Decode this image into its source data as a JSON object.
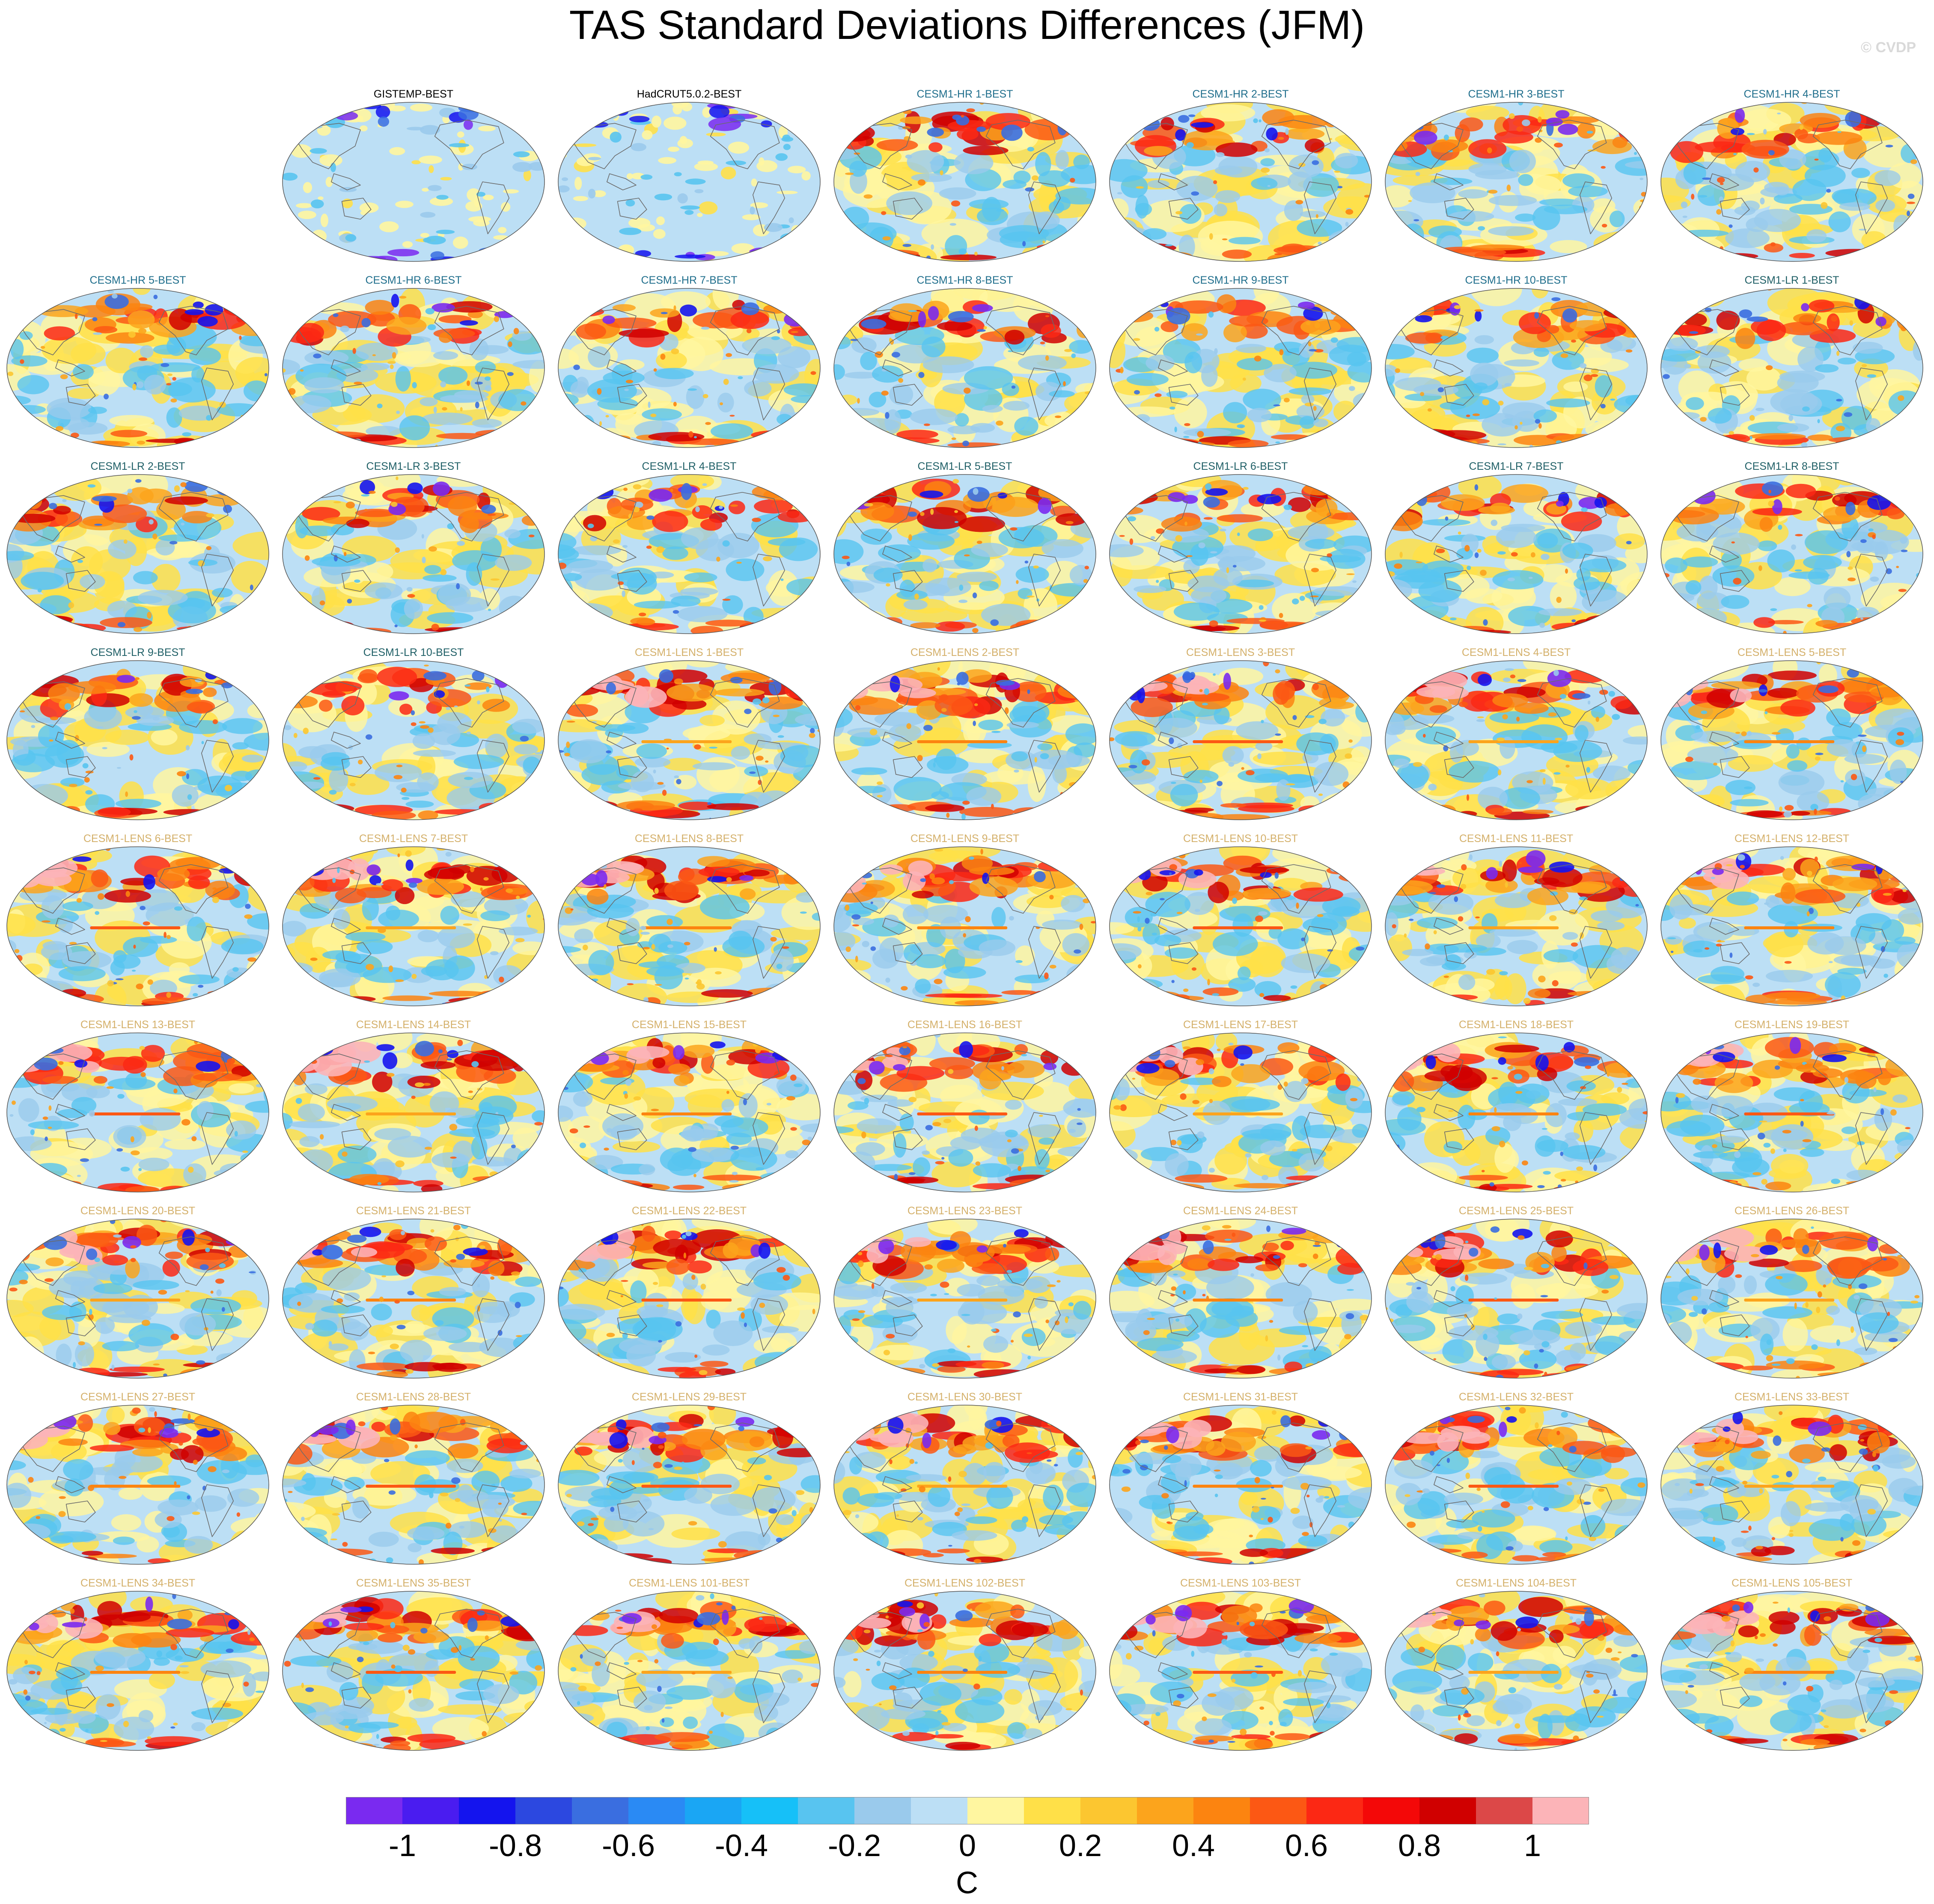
{
  "title": "TAS Standard Deviations Differences (JFM)",
  "credit": "© CVDP",
  "title_colors": {
    "obs": "#000000",
    "hr": "#1f6e8c",
    "lr": "#1f5f66",
    "lens": "#d4b06a"
  },
  "panels": [
    {
      "label": "GISTEMP-BEST",
      "group": "obs",
      "row": 0,
      "col": 1,
      "style": "obs"
    },
    {
      "label": "HadCRUT5.0.2-BEST",
      "group": "obs",
      "row": 0,
      "col": 2,
      "style": "obs"
    },
    {
      "label": "CESM1-HR 1-BEST",
      "group": "hr",
      "row": 0,
      "col": 3,
      "style": "model"
    },
    {
      "label": "CESM1-HR 2-BEST",
      "group": "hr",
      "row": 0,
      "col": 4,
      "style": "model"
    },
    {
      "label": "CESM1-HR 3-BEST",
      "group": "hr",
      "row": 0,
      "col": 5,
      "style": "model"
    },
    {
      "label": "CESM1-HR 4-BEST",
      "group": "hr",
      "row": 0,
      "col": 6,
      "style": "model"
    },
    {
      "label": "CESM1-HR 5-BEST",
      "group": "hr",
      "row": 1,
      "col": 0,
      "style": "model"
    },
    {
      "label": "CESM1-HR 6-BEST",
      "group": "hr",
      "row": 1,
      "col": 1,
      "style": "model"
    },
    {
      "label": "CESM1-HR 7-BEST",
      "group": "hr",
      "row": 1,
      "col": 2,
      "style": "model"
    },
    {
      "label": "CESM1-HR 8-BEST",
      "group": "hr",
      "row": 1,
      "col": 3,
      "style": "model"
    },
    {
      "label": "CESM1-HR 9-BEST",
      "group": "hr",
      "row": 1,
      "col": 4,
      "style": "model"
    },
    {
      "label": "CESM1-HR 10-BEST",
      "group": "hr",
      "row": 1,
      "col": 5,
      "style": "model"
    },
    {
      "label": "CESM1-LR 1-BEST",
      "group": "lr",
      "row": 1,
      "col": 6,
      "style": "model"
    },
    {
      "label": "CESM1-LR 2-BEST",
      "group": "lr",
      "row": 2,
      "col": 0,
      "style": "model"
    },
    {
      "label": "CESM1-LR 3-BEST",
      "group": "lr",
      "row": 2,
      "col": 1,
      "style": "model"
    },
    {
      "label": "CESM1-LR 4-BEST",
      "group": "lr",
      "row": 2,
      "col": 2,
      "style": "model"
    },
    {
      "label": "CESM1-LR 5-BEST",
      "group": "lr",
      "row": 2,
      "col": 3,
      "style": "model"
    },
    {
      "label": "CESM1-LR 6-BEST",
      "group": "lr",
      "row": 2,
      "col": 4,
      "style": "model"
    },
    {
      "label": "CESM1-LR 7-BEST",
      "group": "lr",
      "row": 2,
      "col": 5,
      "style": "model"
    },
    {
      "label": "CESM1-LR 8-BEST",
      "group": "lr",
      "row": 2,
      "col": 6,
      "style": "model"
    },
    {
      "label": "CESM1-LR 9-BEST",
      "group": "lr",
      "row": 3,
      "col": 0,
      "style": "model"
    },
    {
      "label": "CESM1-LR 10-BEST",
      "group": "lr",
      "row": 3,
      "col": 1,
      "style": "model"
    },
    {
      "label": "CESM1-LENS 1-BEST",
      "group": "lens",
      "row": 3,
      "col": 2,
      "style": "lens"
    },
    {
      "label": "CESM1-LENS 2-BEST",
      "group": "lens",
      "row": 3,
      "col": 3,
      "style": "lens"
    },
    {
      "label": "CESM1-LENS 3-BEST",
      "group": "lens",
      "row": 3,
      "col": 4,
      "style": "lens"
    },
    {
      "label": "CESM1-LENS 4-BEST",
      "group": "lens",
      "row": 3,
      "col": 5,
      "style": "lens"
    },
    {
      "label": "CESM1-LENS 5-BEST",
      "group": "lens",
      "row": 3,
      "col": 6,
      "style": "lens"
    },
    {
      "label": "CESM1-LENS 6-BEST",
      "group": "lens",
      "row": 4,
      "col": 0,
      "style": "lens"
    },
    {
      "label": "CESM1-LENS 7-BEST",
      "group": "lens",
      "row": 4,
      "col": 1,
      "style": "lens"
    },
    {
      "label": "CESM1-LENS 8-BEST",
      "group": "lens",
      "row": 4,
      "col": 2,
      "style": "lens"
    },
    {
      "label": "CESM1-LENS 9-BEST",
      "group": "lens",
      "row": 4,
      "col": 3,
      "style": "lens"
    },
    {
      "label": "CESM1-LENS 10-BEST",
      "group": "lens",
      "row": 4,
      "col": 4,
      "style": "lens"
    },
    {
      "label": "CESM1-LENS 11-BEST",
      "group": "lens",
      "row": 4,
      "col": 5,
      "style": "lens"
    },
    {
      "label": "CESM1-LENS 12-BEST",
      "group": "lens",
      "row": 4,
      "col": 6,
      "style": "lens"
    },
    {
      "label": "CESM1-LENS 13-BEST",
      "group": "lens",
      "row": 5,
      "col": 0,
      "style": "lens"
    },
    {
      "label": "CESM1-LENS 14-BEST",
      "group": "lens",
      "row": 5,
      "col": 1,
      "style": "lens"
    },
    {
      "label": "CESM1-LENS 15-BEST",
      "group": "lens",
      "row": 5,
      "col": 2,
      "style": "lens"
    },
    {
      "label": "CESM1-LENS 16-BEST",
      "group": "lens",
      "row": 5,
      "col": 3,
      "style": "lens"
    },
    {
      "label": "CESM1-LENS 17-BEST",
      "group": "lens",
      "row": 5,
      "col": 4,
      "style": "lens"
    },
    {
      "label": "CESM1-LENS 18-BEST",
      "group": "lens",
      "row": 5,
      "col": 5,
      "style": "lens"
    },
    {
      "label": "CESM1-LENS 19-BEST",
      "group": "lens",
      "row": 5,
      "col": 6,
      "style": "lens"
    },
    {
      "label": "CESM1-LENS 20-BEST",
      "group": "lens",
      "row": 6,
      "col": 0,
      "style": "lens"
    },
    {
      "label": "CESM1-LENS 21-BEST",
      "group": "lens",
      "row": 6,
      "col": 1,
      "style": "lens"
    },
    {
      "label": "CESM1-LENS 22-BEST",
      "group": "lens",
      "row": 6,
      "col": 2,
      "style": "lens"
    },
    {
      "label": "CESM1-LENS 23-BEST",
      "group": "lens",
      "row": 6,
      "col": 3,
      "style": "lens"
    },
    {
      "label": "CESM1-LENS 24-BEST",
      "group": "lens",
      "row": 6,
      "col": 4,
      "style": "lens"
    },
    {
      "label": "CESM1-LENS 25-BEST",
      "group": "lens",
      "row": 6,
      "col": 5,
      "style": "lens"
    },
    {
      "label": "CESM1-LENS 26-BEST",
      "group": "lens",
      "row": 6,
      "col": 6,
      "style": "lens"
    },
    {
      "label": "CESM1-LENS 27-BEST",
      "group": "lens",
      "row": 7,
      "col": 0,
      "style": "lens"
    },
    {
      "label": "CESM1-LENS 28-BEST",
      "group": "lens",
      "row": 7,
      "col": 1,
      "style": "lens"
    },
    {
      "label": "CESM1-LENS 29-BEST",
      "group": "lens",
      "row": 7,
      "col": 2,
      "style": "lens"
    },
    {
      "label": "CESM1-LENS 30-BEST",
      "group": "lens",
      "row": 7,
      "col": 3,
      "style": "lens"
    },
    {
      "label": "CESM1-LENS 31-BEST",
      "group": "lens",
      "row": 7,
      "col": 4,
      "style": "lens"
    },
    {
      "label": "CESM1-LENS 32-BEST",
      "group": "lens",
      "row": 7,
      "col": 5,
      "style": "lens"
    },
    {
      "label": "CESM1-LENS 33-BEST",
      "group": "lens",
      "row": 7,
      "col": 6,
      "style": "lens"
    },
    {
      "label": "CESM1-LENS 34-BEST",
      "group": "lens",
      "row": 8,
      "col": 0,
      "style": "lens"
    },
    {
      "label": "CESM1-LENS 35-BEST",
      "group": "lens",
      "row": 8,
      "col": 1,
      "style": "lens"
    },
    {
      "label": "CESM1-LENS 101-BEST",
      "group": "lens",
      "row": 8,
      "col": 2,
      "style": "lens"
    },
    {
      "label": "CESM1-LENS 102-BEST",
      "group": "lens",
      "row": 8,
      "col": 3,
      "style": "lens"
    },
    {
      "label": "CESM1-LENS 103-BEST",
      "group": "lens",
      "row": 8,
      "col": 4,
      "style": "lens"
    },
    {
      "label": "CESM1-LENS 104-BEST",
      "group": "lens",
      "row": 8,
      "col": 5,
      "style": "lens"
    },
    {
      "label": "CESM1-LENS 105-BEST",
      "group": "lens",
      "row": 8,
      "col": 6,
      "style": "lens"
    }
  ],
  "colorbar": {
    "label": "C",
    "tick_labels": [
      "-1",
      "-0.8",
      "-0.6",
      "-0.4",
      "-0.2",
      "0",
      "0.2",
      "0.4",
      "0.6",
      "0.8",
      "1"
    ],
    "colors": [
      "#7a2af0",
      "#4a1cf0",
      "#1414ee",
      "#2c48e0",
      "#3a6ee0",
      "#2a8af4",
      "#1aa6f4",
      "#16c0f8",
      "#58c4f0",
      "#9acaec",
      "#bcdff5",
      "#fff6a0",
      "#ffe048",
      "#fcc630",
      "#fca41c",
      "#fc8410",
      "#fc5814",
      "#fc2814",
      "#f40808",
      "#d00000",
      "#dc4848",
      "#fcb4b8"
    ]
  },
  "map_palette": {
    "ocean_base": "#bcdff5",
    "obs_base": "#bcdff5",
    "warm": [
      "#fff6a0",
      "#ffe048",
      "#fcc630",
      "#fca41c",
      "#fc8410",
      "#fc5814",
      "#fc2814",
      "#d00000",
      "#fcb4b8"
    ],
    "cool": [
      "#9acaec",
      "#58c4f0",
      "#3a6ee0",
      "#1414ee",
      "#7a2af0"
    ],
    "coast": "#6b6b6b"
  }
}
